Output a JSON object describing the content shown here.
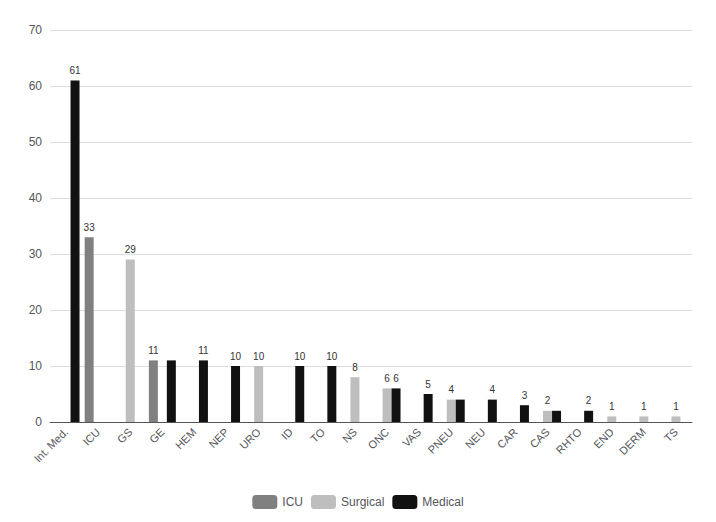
{
  "chart_data": {
    "type": "bar",
    "categories": [
      "Int. Med.",
      "ICU",
      "GS",
      "GE",
      "HEM",
      "NEP",
      "URO",
      "ID",
      "TO",
      "NS",
      "ONC",
      "VAS",
      "PNEU",
      "NEU",
      "CAR",
      "CAS",
      "RHTO",
      "END",
      "DERM",
      "TS"
    ],
    "series": [
      {
        "name": "ICU",
        "color": "#808080",
        "values": [
          0,
          33,
          0,
          11,
          0,
          0,
          0,
          0,
          0,
          0,
          0,
          0,
          0,
          0,
          0,
          0,
          0,
          0,
          0,
          0
        ],
        "value_labels": [
          null,
          "33",
          null,
          "11",
          null,
          null,
          null,
          null,
          null,
          null,
          null,
          null,
          null,
          null,
          null,
          null,
          null,
          null,
          null,
          null
        ]
      },
      {
        "name": "Surgical",
        "color": "#bebebe",
        "values": [
          0,
          0,
          29,
          0,
          0,
          0,
          10,
          0,
          0,
          8,
          6,
          0,
          4,
          0,
          0,
          2,
          0,
          1,
          1,
          1
        ],
        "value_labels": [
          null,
          null,
          "29",
          null,
          null,
          null,
          "10",
          null,
          null,
          "8",
          "6",
          null,
          "4",
          null,
          null,
          "2",
          null,
          "1",
          "1",
          "1"
        ]
      },
      {
        "name": "Medical",
        "color": "#111111",
        "values": [
          61,
          0,
          0,
          11,
          11,
          10,
          0,
          10,
          10,
          0,
          6,
          5,
          4,
          4,
          3,
          2,
          2,
          0,
          0,
          0
        ],
        "value_labels": [
          "61",
          null,
          null,
          null,
          "11",
          "10",
          null,
          "10",
          "10",
          null,
          "6",
          "5",
          null,
          "4",
          "3",
          null,
          "2",
          null,
          null,
          null
        ]
      }
    ],
    "ylim": [
      0,
      70
    ],
    "yticks": [
      0,
      10,
      20,
      30,
      40,
      50,
      60,
      70
    ],
    "grid": true,
    "legend": "bottom",
    "data_labels": true
  }
}
